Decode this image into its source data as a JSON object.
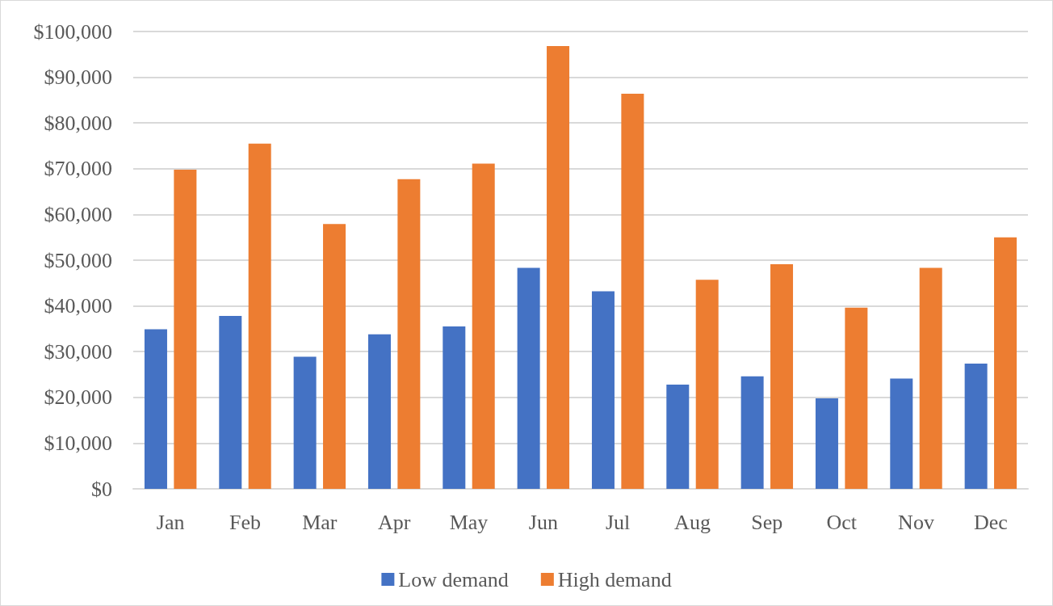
{
  "chart_data": {
    "type": "bar",
    "categories": [
      "Jan",
      "Feb",
      "Mar",
      "Apr",
      "May",
      "Jun",
      "Jul",
      "Aug",
      "Sep",
      "Oct",
      "Nov",
      "Dec"
    ],
    "series": [
      {
        "name": "Low demand",
        "color": "#4472c4",
        "values": [
          34900,
          37800,
          28900,
          33800,
          35500,
          48300,
          43200,
          22800,
          24600,
          19800,
          24100,
          27400
        ]
      },
      {
        "name": "High demand",
        "color": "#ed7d31",
        "values": [
          69800,
          75500,
          57900,
          67700,
          71100,
          96800,
          86400,
          45700,
          49100,
          39600,
          48300,
          55000
        ]
      }
    ],
    "ylim": [
      0,
      100000
    ],
    "yticks": [
      {
        "value": 0,
        "label": "$0"
      },
      {
        "value": 10000,
        "label": "$10,000"
      },
      {
        "value": 20000,
        "label": "$20,000"
      },
      {
        "value": 30000,
        "label": "$30,000"
      },
      {
        "value": 40000,
        "label": "$40,000"
      },
      {
        "value": 50000,
        "label": "$50,000"
      },
      {
        "value": 60000,
        "label": "$60,000"
      },
      {
        "value": 70000,
        "label": "$70,000"
      },
      {
        "value": 80000,
        "label": "$80,000"
      },
      {
        "value": 90000,
        "label": "$90,000"
      },
      {
        "value": 100000,
        "label": "$100,000"
      }
    ],
    "grid": "y",
    "legend": "bottom"
  }
}
